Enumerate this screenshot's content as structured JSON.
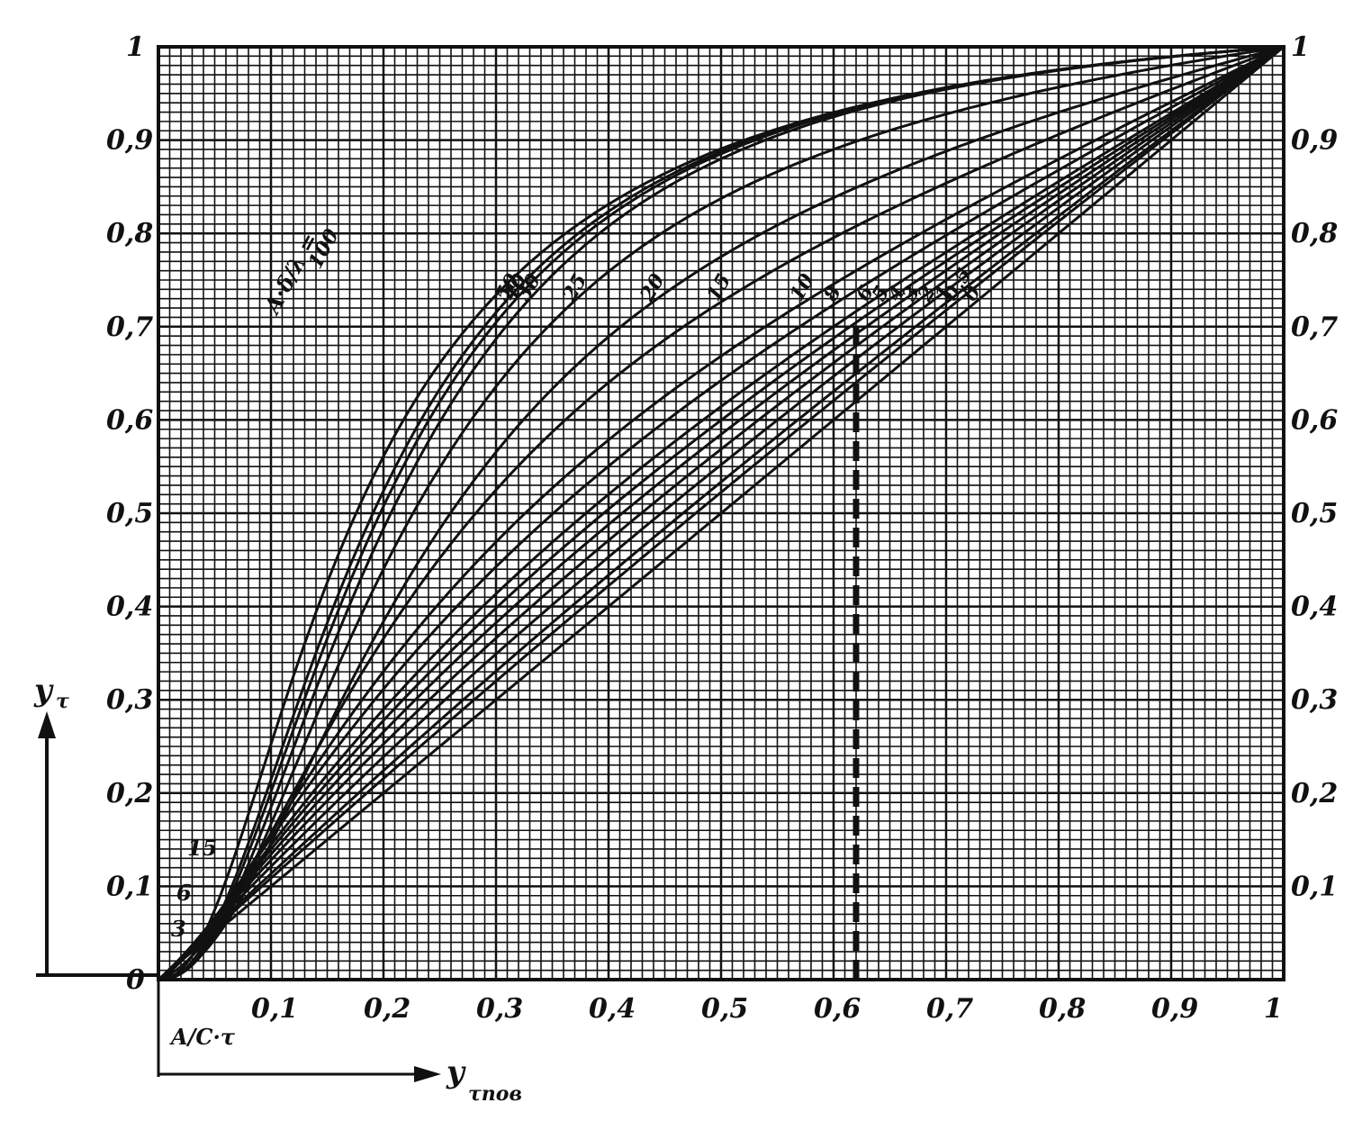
{
  "chart_data": {
    "type": "line",
    "title": "",
    "x_axis_label": "y",
    "x_axis_label_subscript": "τпов",
    "y_axis_label": "y",
    "y_axis_label_subscript": "τ",
    "parameter_label": "A·δ/λ =",
    "corner_label": "A/C·τ",
    "xlim": [
      0,
      1
    ],
    "ylim": [
      0,
      1
    ],
    "grid": true,
    "x_ticks": [
      "0,1",
      "0,2",
      "0,3",
      "0,4",
      "0,5",
      "0,6",
      "0,7",
      "0,8",
      "0,9",
      "1"
    ],
    "y_ticks_left": [
      "0",
      "0,1",
      "0,2",
      "0,3",
      "0,4",
      "0,5",
      "0,6",
      "0,7",
      "0,8",
      "0,9",
      "1"
    ],
    "y_ticks_right": [
      "0,1",
      "0,2",
      "0,3",
      "0,4",
      "0,5",
      "0,6",
      "0,7",
      "0,8",
      "0,9",
      "1"
    ],
    "inset_labels": [
      "15",
      "6",
      "3"
    ],
    "series": [
      {
        "label": "100",
        "k": 100
      },
      {
        "label": "50",
        "k": 50
      },
      {
        "label": "40",
        "k": 40
      },
      {
        "label": "30",
        "k": 30
      },
      {
        "label": "25",
        "k": 25
      },
      {
        "label": "20",
        "k": 20
      },
      {
        "label": "15",
        "k": 15
      },
      {
        "label": "10",
        "k": 10
      },
      {
        "label": "8",
        "k": 8
      },
      {
        "label": "6",
        "k": 6
      },
      {
        "label": "5",
        "k": 5
      },
      {
        "label": "4",
        "k": 4
      },
      {
        "label": "3",
        "k": 3
      },
      {
        "label": "2",
        "k": 2
      },
      {
        "label": "1",
        "k": 1
      },
      {
        "label": "0,5",
        "k": 0.5
      },
      {
        "label": "0",
        "k": 0
      }
    ],
    "example_path": [
      [
        0.62,
        0
      ],
      [
        0.62,
        0.7
      ]
    ]
  }
}
